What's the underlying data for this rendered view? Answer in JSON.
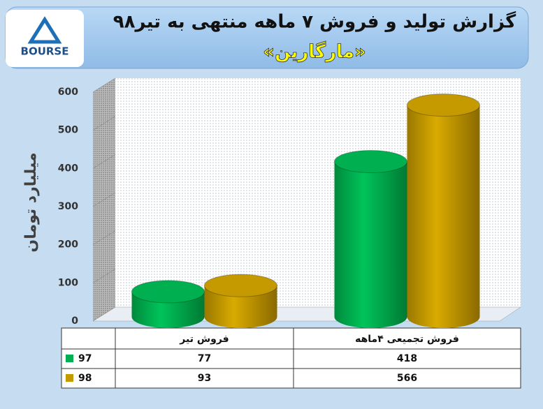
{
  "logo": "BOURSE",
  "chart_data": {
    "type": "bar",
    "title": "گزارش تولید و فروش ۷ ماهه منتهی به تیر۹۸",
    "subtitle": "«مارگارین»",
    "y_label": "میلیارد تومان",
    "categories": [
      "فروش تیر",
      "فروش تجمیعی ۴ماهه"
    ],
    "series": [
      {
        "name": "97",
        "color": "#00b050",
        "values": [
          77,
          418
        ]
      },
      {
        "name": "98",
        "color": "#c49a00",
        "values": [
          93,
          566
        ]
      }
    ],
    "ylim": [
      0,
      600
    ],
    "yticks": [
      0,
      100,
      200,
      300,
      400,
      500,
      600
    ],
    "grid": true
  }
}
